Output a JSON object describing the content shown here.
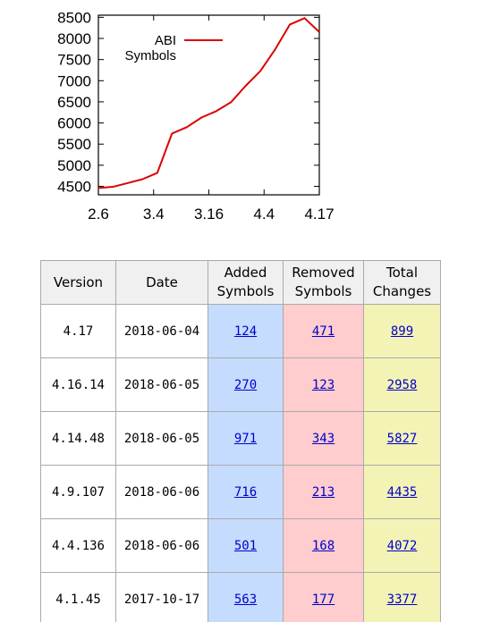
{
  "chart_data": {
    "type": "line",
    "title": "",
    "xlabel": "",
    "ylabel": "",
    "x_ticks": [
      "2.6",
      "3.4",
      "3.16",
      "4.4",
      "4.17"
    ],
    "y_ticks": [
      4500,
      5000,
      5500,
      6000,
      6500,
      7000,
      7500,
      8000,
      8500
    ],
    "ylim": [
      4300,
      8550
    ],
    "legend": {
      "label_line1": "ABI",
      "label_line2": "Symbols",
      "placement": "top-left"
    },
    "grid": false,
    "series": [
      {
        "name": "ABI Symbols",
        "color": "#dd0000",
        "values": [
          4460,
          4490,
          4580,
          4670,
          4820,
          5750,
          5900,
          6130,
          6280,
          6490,
          6880,
          7230,
          7740,
          8330,
          8480,
          8150
        ]
      }
    ]
  },
  "table": {
    "headers": [
      [
        "Version"
      ],
      [
        "Date"
      ],
      [
        "Added",
        "Symbols"
      ],
      [
        "Removed",
        "Symbols"
      ],
      [
        "Total",
        "Changes"
      ]
    ],
    "rows": [
      {
        "version": "4.17",
        "date": "2018-06-04",
        "added": "124",
        "removed": "471",
        "total": "899"
      },
      {
        "version": "4.16.14",
        "date": "2018-06-05",
        "added": "270",
        "removed": "123",
        "total": "2958"
      },
      {
        "version": "4.14.48",
        "date": "2018-06-05",
        "added": "971",
        "removed": "343",
        "total": "5827"
      },
      {
        "version": "4.9.107",
        "date": "2018-06-06",
        "added": "716",
        "removed": "213",
        "total": "4435"
      },
      {
        "version": "4.4.136",
        "date": "2018-06-06",
        "added": "501",
        "removed": "168",
        "total": "4072"
      },
      {
        "version": "4.1.45",
        "date": "2017-10-17",
        "added": "563",
        "removed": "177",
        "total": "3377"
      }
    ]
  }
}
